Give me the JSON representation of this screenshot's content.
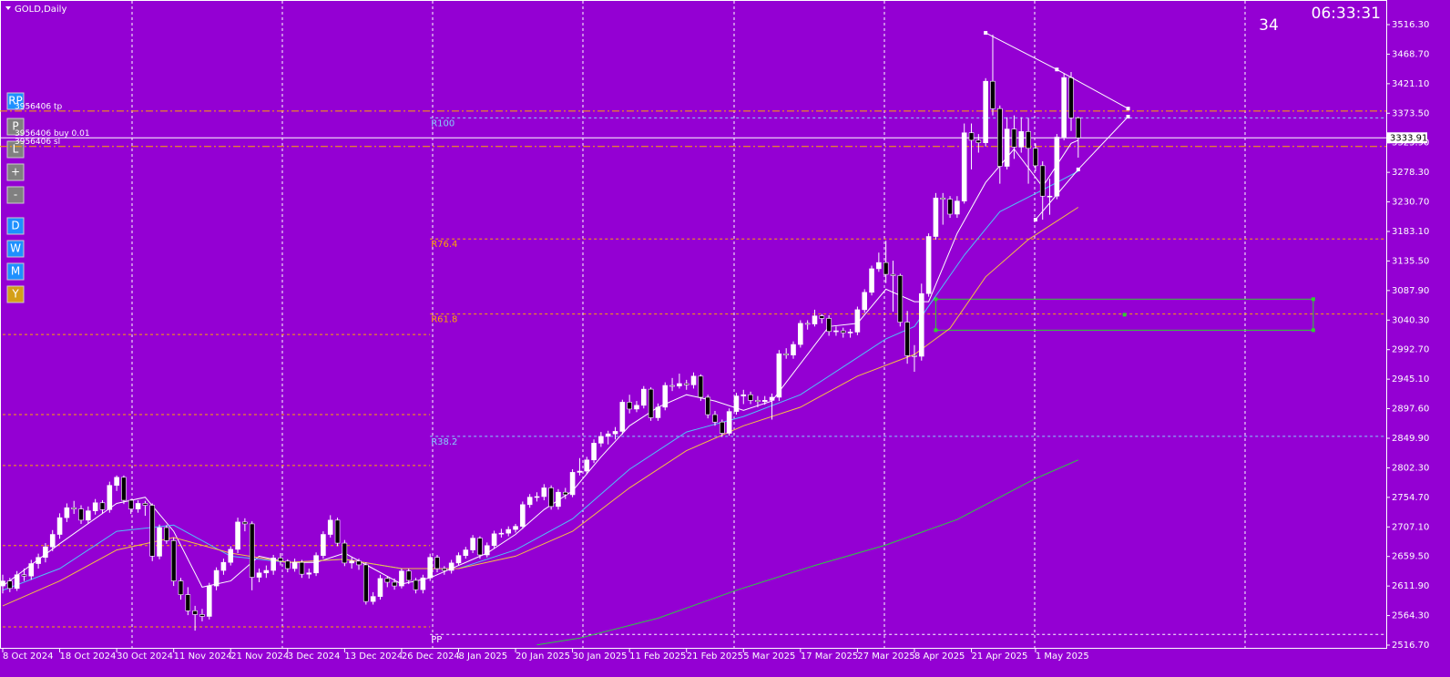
{
  "chart_data": {
    "type": "candlestick",
    "title": "GOLD,Daily",
    "timer": "06:33:31",
    "counter": "34",
    "ylim": [
      2516.7,
      3516.3
    ],
    "yticks": [
      {
        "value": 3516.3,
        "label": "3516.30"
      },
      {
        "value": 3468.7,
        "label": "3468.70"
      },
      {
        "value": 3421.1,
        "label": "3421.10"
      },
      {
        "value": 3373.5,
        "label": "3373.50"
      },
      {
        "value": 3325.9,
        "label": "3325.90"
      },
      {
        "value": 3278.3,
        "label": "3278.30"
      },
      {
        "value": 3230.7,
        "label": "3230.70"
      },
      {
        "value": 3183.1,
        "label": "3183.10"
      },
      {
        "value": 3135.5,
        "label": "3135.50"
      },
      {
        "value": 3087.9,
        "label": "3087.90"
      },
      {
        "value": 3040.3,
        "label": "3040.30"
      },
      {
        "value": 2992.7,
        "label": "2992.70"
      },
      {
        "value": 2945.1,
        "label": "2945.10"
      },
      {
        "value": 2897.6,
        "label": "2897.60"
      },
      {
        "value": 2849.9,
        "label": "2849.90"
      },
      {
        "value": 2802.3,
        "label": "2802.30"
      },
      {
        "value": 2754.7,
        "label": "2754.70"
      },
      {
        "value": 2707.1,
        "label": "2707.10"
      },
      {
        "value": 2659.5,
        "label": "2659.50"
      },
      {
        "value": 2611.9,
        "label": "2611.90"
      },
      {
        "value": 2564.3,
        "label": "2564.30"
      },
      {
        "value": 2516.7,
        "label": "2516.70"
      }
    ],
    "xticks": [
      {
        "value": 0,
        "label": "8 Oct 2024"
      },
      {
        "value": 8,
        "label": "18 Oct 2024"
      },
      {
        "value": 16,
        "label": "30 Oct 2024"
      },
      {
        "value": 24,
        "label": "11 Nov 2024"
      },
      {
        "value": 32,
        "label": "21 Nov 2024"
      },
      {
        "value": 40,
        "label": "3 Dec 2024"
      },
      {
        "value": 48,
        "label": "13 Dec 2024"
      },
      {
        "value": 56,
        "label": "26 Dec 2024"
      },
      {
        "value": 64,
        "label": "8 Jan 2025"
      },
      {
        "value": 72,
        "label": "20 Jan 2025"
      },
      {
        "value": 80,
        "label": "30 Jan 2025"
      },
      {
        "value": 88,
        "label": "11 Feb 2025"
      },
      {
        "value": 96,
        "label": "21 Feb 2025"
      },
      {
        "value": 104,
        "label": "5 Mar 2025"
      },
      {
        "value": 112,
        "label": "17 Mar 2025"
      },
      {
        "value": 120,
        "label": "27 Mar 2025"
      },
      {
        "value": 128,
        "label": "8 Apr 2025"
      },
      {
        "value": 136,
        "label": "21 Apr 2025"
      },
      {
        "value": 145,
        "label": "1 May 2025"
      }
    ],
    "current_price": 3333.91,
    "up_color": "#ffffff",
    "down_color": "#000000",
    "candles": [
      [
        2612,
        2630,
        2600,
        2620
      ],
      [
        2620,
        2625,
        2602,
        2608
      ],
      [
        2608,
        2636,
        2604,
        2630
      ],
      [
        2630,
        2640,
        2620,
        2628
      ],
      [
        2628,
        2654,
        2622,
        2648
      ],
      [
        2648,
        2664,
        2640,
        2658
      ],
      [
        2658,
        2681,
        2650,
        2675
      ],
      [
        2675,
        2702,
        2668,
        2695
      ],
      [
        2695,
        2729,
        2688,
        2722
      ],
      [
        2722,
        2745,
        2715,
        2738
      ],
      [
        2738,
        2749,
        2728,
        2736
      ],
      [
        2736,
        2742,
        2712,
        2718
      ],
      [
        2718,
        2740,
        2712,
        2733
      ],
      [
        2733,
        2752,
        2727,
        2746
      ],
      [
        2746,
        2750,
        2728,
        2735
      ],
      [
        2735,
        2780,
        2730,
        2774
      ],
      [
        2774,
        2790,
        2765,
        2787
      ],
      [
        2787,
        2790,
        2744,
        2750
      ],
      [
        2750,
        2752,
        2728,
        2736
      ],
      [
        2736,
        2750,
        2730,
        2745
      ],
      [
        2745,
        2749,
        2725,
        2742
      ],
      [
        2742,
        2745,
        2652,
        2660
      ],
      [
        2660,
        2711,
        2655,
        2706
      ],
      [
        2706,
        2710,
        2680,
        2685
      ],
      [
        2685,
        2690,
        2612,
        2620
      ],
      [
        2620,
        2625,
        2590,
        2598
      ],
      [
        2598,
        2610,
        2565,
        2572
      ],
      [
        2572,
        2580,
        2540,
        2566
      ],
      [
        2566,
        2575,
        2555,
        2563
      ],
      [
        2563,
        2617,
        2558,
        2612
      ],
      [
        2612,
        2642,
        2605,
        2637
      ],
      [
        2637,
        2656,
        2630,
        2650
      ],
      [
        2650,
        2676,
        2645,
        2671
      ],
      [
        2671,
        2722,
        2665,
        2715
      ],
      [
        2715,
        2721,
        2700,
        2712
      ],
      [
        2712,
        2716,
        2605,
        2626
      ],
      [
        2626,
        2640,
        2618,
        2633
      ],
      [
        2633,
        2645,
        2625,
        2637
      ],
      [
        2637,
        2662,
        2630,
        2657
      ],
      [
        2657,
        2665,
        2645,
        2652
      ],
      [
        2652,
        2655,
        2634,
        2640
      ],
      [
        2640,
        2656,
        2635,
        2650
      ],
      [
        2650,
        2654,
        2625,
        2631
      ],
      [
        2631,
        2640,
        2624,
        2633
      ],
      [
        2633,
        2666,
        2628,
        2661
      ],
      [
        2661,
        2700,
        2656,
        2695
      ],
      [
        2695,
        2726,
        2690,
        2718
      ],
      [
        2718,
        2722,
        2676,
        2681
      ],
      [
        2681,
        2686,
        2644,
        2649
      ],
      [
        2649,
        2658,
        2640,
        2652
      ],
      [
        2652,
        2656,
        2638,
        2646
      ],
      [
        2646,
        2650,
        2582,
        2587
      ],
      [
        2587,
        2602,
        2582,
        2595
      ],
      [
        2595,
        2630,
        2590,
        2624
      ],
      [
        2624,
        2628,
        2610,
        2618
      ],
      [
        2618,
        2624,
        2606,
        2612
      ],
      [
        2612,
        2640,
        2608,
        2636
      ],
      [
        2636,
        2640,
        2615,
        2621
      ],
      [
        2621,
        2625,
        2600,
        2606
      ],
      [
        2606,
        2630,
        2600,
        2625
      ],
      [
        2625,
        2664,
        2620,
        2658
      ],
      [
        2658,
        2662,
        2634,
        2640
      ],
      [
        2640,
        2644,
        2630,
        2637
      ],
      [
        2637,
        2654,
        2632,
        2649
      ],
      [
        2649,
        2666,
        2645,
        2661
      ],
      [
        2661,
        2675,
        2656,
        2670
      ],
      [
        2670,
        2694,
        2665,
        2689
      ],
      [
        2689,
        2692,
        2656,
        2662
      ],
      [
        2662,
        2682,
        2658,
        2677
      ],
      [
        2677,
        2701,
        2672,
        2696
      ],
      [
        2696,
        2704,
        2690,
        2697
      ],
      [
        2697,
        2708,
        2692,
        2703
      ],
      [
        2703,
        2712,
        2698,
        2708
      ],
      [
        2708,
        2748,
        2704,
        2743
      ],
      [
        2743,
        2760,
        2738,
        2755
      ],
      [
        2755,
        2763,
        2748,
        2756
      ],
      [
        2756,
        2776,
        2750,
        2770
      ],
      [
        2770,
        2774,
        2735,
        2740
      ],
      [
        2740,
        2768,
        2735,
        2763
      ],
      [
        2763,
        2770,
        2752,
        2759
      ],
      [
        2759,
        2800,
        2755,
        2795
      ],
      [
        2795,
        2818,
        2790,
        2797
      ],
      [
        2797,
        2820,
        2792,
        2815
      ],
      [
        2815,
        2848,
        2810,
        2842
      ],
      [
        2842,
        2860,
        2836,
        2853
      ],
      [
        2853,
        2862,
        2840,
        2857
      ],
      [
        2857,
        2868,
        2848,
        2861
      ],
      [
        2861,
        2912,
        2856,
        2908
      ],
      [
        2908,
        2920,
        2890,
        2897
      ],
      [
        2897,
        2910,
        2892,
        2903
      ],
      [
        2903,
        2934,
        2898,
        2929
      ],
      [
        2929,
        2932,
        2878,
        2883
      ],
      [
        2883,
        2906,
        2878,
        2900
      ],
      [
        2900,
        2940,
        2895,
        2935
      ],
      [
        2935,
        2947,
        2926,
        2934
      ],
      [
        2934,
        2954,
        2930,
        2938
      ],
      [
        2938,
        2944,
        2928,
        2936
      ],
      [
        2936,
        2956,
        2930,
        2950
      ],
      [
        2950,
        2953,
        2910,
        2916
      ],
      [
        2916,
        2920,
        2882,
        2888
      ],
      [
        2888,
        2894,
        2870,
        2876
      ],
      [
        2876,
        2880,
        2852,
        2858
      ],
      [
        2858,
        2898,
        2854,
        2893
      ],
      [
        2893,
        2923,
        2888,
        2918
      ],
      [
        2918,
        2928,
        2905,
        2920
      ],
      [
        2920,
        2925,
        2905,
        2911
      ],
      [
        2911,
        2918,
        2900,
        2909
      ],
      [
        2909,
        2918,
        2904,
        2911
      ],
      [
        2911,
        2922,
        2880,
        2916
      ],
      [
        2916,
        2992,
        2910,
        2986
      ],
      [
        2986,
        2995,
        2978,
        2984
      ],
      [
        2984,
        3006,
        2978,
        3001
      ],
      [
        3001,
        3040,
        2996,
        3035
      ],
      [
        3035,
        3040,
        3025,
        3034
      ],
      [
        3034,
        3057,
        3030,
        3047
      ],
      [
        3047,
        3050,
        3035,
        3043
      ],
      [
        3043,
        3048,
        3015,
        3022
      ],
      [
        3022,
        3030,
        3015,
        3023
      ],
      [
        3023,
        3028,
        3012,
        3020
      ],
      [
        3020,
        3026,
        3012,
        3021
      ],
      [
        3021,
        3062,
        3016,
        3057
      ],
      [
        3057,
        3090,
        3052,
        3085
      ],
      [
        3085,
        3128,
        3080,
        3123
      ],
      [
        3123,
        3149,
        3118,
        3133
      ],
      [
        3133,
        3168,
        3100,
        3114
      ],
      [
        3114,
        3136,
        3054,
        3112
      ],
      [
        3112,
        3115,
        3030,
        3037
      ],
      [
        3037,
        3055,
        2970,
        2983
      ],
      [
        2983,
        3000,
        2957,
        2982
      ],
      [
        2982,
        3099,
        2975,
        3083
      ],
      [
        3083,
        3180,
        3078,
        3175
      ],
      [
        3175,
        3245,
        3170,
        3237
      ],
      [
        3237,
        3245,
        3194,
        3235
      ],
      [
        3235,
        3240,
        3205,
        3211
      ],
      [
        3211,
        3240,
        3205,
        3232
      ],
      [
        3232,
        3357,
        3228,
        3342
      ],
      [
        3342,
        3357,
        3283,
        3330
      ],
      [
        3330,
        3340,
        3310,
        3326
      ],
      [
        3326,
        3430,
        3320,
        3425
      ],
      [
        3425,
        3500,
        3370,
        3381
      ],
      [
        3381,
        3386,
        3260,
        3288
      ],
      [
        3288,
        3367,
        3283,
        3348
      ],
      [
        3348,
        3370,
        3300,
        3319
      ],
      [
        3319,
        3367,
        3310,
        3344
      ],
      [
        3344,
        3366,
        3260,
        3317
      ],
      [
        3317,
        3325,
        3280,
        3289
      ],
      [
        3289,
        3296,
        3202,
        3240
      ],
      [
        3240,
        3268,
        3210,
        3240
      ],
      [
        3240,
        3340,
        3235,
        3335
      ],
      [
        3335,
        3438,
        3330,
        3431
      ],
      [
        3431,
        3440,
        3345,
        3366
      ],
      [
        3366,
        3368,
        3302,
        3333.91
      ]
    ],
    "lines": [
      {
        "color": "#ffffff",
        "x": [
          0,
          8,
          16,
          20,
          24,
          28,
          32,
          36,
          40,
          44,
          48,
          52,
          56,
          60,
          64,
          68,
          72,
          76,
          80,
          84,
          88,
          92,
          96,
          100,
          104,
          108,
          112,
          116,
          120,
          124,
          128,
          130,
          134,
          138,
          142,
          146,
          150,
          151
        ],
        "values": [
          2612,
          2680,
          2745,
          2755,
          2700,
          2610,
          2620,
          2660,
          2650,
          2650,
          2665,
          2640,
          2615,
          2625,
          2645,
          2665,
          2695,
          2735,
          2765,
          2820,
          2870,
          2900,
          2920,
          2910,
          2895,
          2910,
          2970,
          3030,
          3035,
          3090,
          3070,
          3070,
          3180,
          3262,
          3316,
          3255,
          3325,
          3330
        ]
      },
      {
        "color": "#4fc3f7",
        "x": [
          0,
          8,
          16,
          24,
          32,
          40,
          48,
          56,
          64,
          72,
          80,
          88,
          96,
          104,
          112,
          120,
          124,
          128,
          135,
          140,
          146,
          151
        ],
        "values": [
          2605,
          2640,
          2700,
          2710,
          2660,
          2650,
          2655,
          2640,
          2640,
          2670,
          2720,
          2800,
          2860,
          2885,
          2920,
          2980,
          3010,
          3030,
          3145,
          3215,
          3250,
          3280
        ]
      },
      {
        "color": "#f5c242",
        "x": [
          0,
          8,
          16,
          24,
          32,
          40,
          48,
          56,
          64,
          72,
          80,
          88,
          96,
          104,
          112,
          120,
          128,
          133,
          138,
          144,
          151
        ],
        "values": [
          2580,
          2620,
          2670,
          2690,
          2665,
          2650,
          2655,
          2640,
          2640,
          2660,
          2700,
          2770,
          2830,
          2870,
          2900,
          2950,
          2985,
          3027,
          3110,
          3170,
          3222
        ]
      },
      {
        "color": "#2ecc40",
        "x": [
          75,
          81,
          92,
          103,
          114,
          124,
          134,
          145,
          151
        ],
        "values": [
          2517,
          2528,
          2560,
          2605,
          2645,
          2678,
          2719,
          2785,
          2815
        ]
      }
    ],
    "levels": [
      {
        "label": "R100",
        "value": 3366,
        "color": "#87cefa",
        "from": 60
      },
      {
        "label": "R76.4",
        "value": 3171,
        "color": "#ffa500",
        "from": 60
      },
      {
        "label": "R61.8",
        "value": 3050,
        "color": "#ffa500",
        "from": 60
      },
      {
        "label": "R38.2",
        "value": 2853,
        "color": "#87cefa",
        "from": 60
      },
      {
        "label": "PP",
        "value": 2534,
        "color": "#ffffff",
        "from": 60
      },
      {
        "value": 3017,
        "color": "#ffa500",
        "from": 0,
        "to": 60
      },
      {
        "value": 2888,
        "color": "#ffa500",
        "from": 0,
        "to": 60
      },
      {
        "value": 2806,
        "color": "#ffa500",
        "from": 0,
        "to": 60
      },
      {
        "value": 2677,
        "color": "#ffa500",
        "from": 0,
        "to": 60
      },
      {
        "value": 2546,
        "color": "#ffa500",
        "from": 0,
        "to": 60
      }
    ],
    "orders": [
      {
        "label": "3956406 tp",
        "value": 3377,
        "color": "#ffa500"
      },
      {
        "label": "3956406 buy 0.01",
        "value": 3333.91,
        "color": "#ffffff"
      },
      {
        "label": "3956406 sl",
        "value": 3320,
        "color": "#ffa500"
      }
    ],
    "rectangle": {
      "from": 131,
      "to": 184,
      "top": 3074,
      "bottom": 3024,
      "color": "#32cd32"
    },
    "trendlines": [
      {
        "color": "#ffffff",
        "x": [
          138,
          148,
          158
        ],
        "values": [
          3503,
          3444,
          3381
        ]
      },
      {
        "color": "#ffffff",
        "x": [
          145,
          151,
          158
        ],
        "values": [
          3202,
          3283,
          3368
        ]
      }
    ],
    "buttons": [
      "RP",
      "P",
      "L",
      "+",
      "-",
      "D",
      "W",
      "M",
      "Y"
    ]
  }
}
